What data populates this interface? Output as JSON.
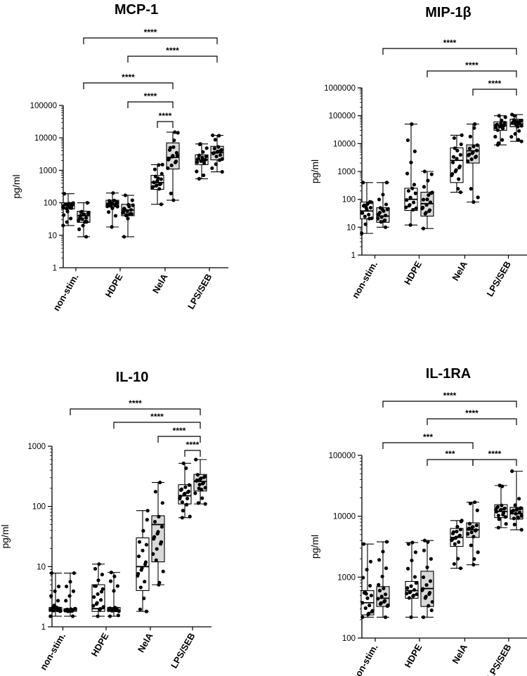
{
  "chart_data": [
    {
      "type": "box",
      "title": "MCP-1",
      "ylabel": "pg/ml",
      "yscale": "log",
      "ylim": [
        1,
        100000
      ],
      "yticks": [
        "1",
        "10",
        "100",
        "1000",
        "10000",
        "100000"
      ],
      "categories": [
        "non-stim.",
        "HDPE",
        "NelA",
        "LPS/SEB"
      ],
      "boxes": [
        {
          "category": "non-stim.",
          "fill": "#ffffff",
          "min": 20,
          "q1": 65,
          "median": 85,
          "q3": 100,
          "max": 190
        },
        {
          "category": "non-stim.",
          "fill": "#d9d9d9",
          "min": 9,
          "q1": 25,
          "median": 40,
          "q3": 55,
          "max": 100
        },
        {
          "category": "HDPE",
          "fill": "#ffffff",
          "min": 18,
          "q1": 75,
          "median": 95,
          "q3": 120,
          "max": 200
        },
        {
          "category": "HDPE",
          "fill": "#d9d9d9",
          "min": 9,
          "q1": 40,
          "median": 60,
          "q3": 90,
          "max": 170
        },
        {
          "category": "NelA",
          "fill": "#ffffff",
          "min": 90,
          "q1": 260,
          "median": 420,
          "q3": 700,
          "max": 1500
        },
        {
          "category": "NelA",
          "fill": "#d9d9d9",
          "min": 120,
          "q1": 1100,
          "median": 2500,
          "q3": 7000,
          "max": 15000
        },
        {
          "category": "LPS/SEB",
          "fill": "#ffffff",
          "min": 550,
          "q1": 1500,
          "median": 2100,
          "q3": 3000,
          "max": 6500
        },
        {
          "category": "LPS/SEB",
          "fill": "#d9d9d9",
          "min": 900,
          "q1": 2100,
          "median": 3500,
          "q3": 5500,
          "max": 12000
        }
      ],
      "comparisons": [
        {
          "label": "****",
          "from": 1,
          "to": 7,
          "tick_left": true
        },
        {
          "label": "****",
          "from": 3,
          "to": 7,
          "tick_left": true
        },
        {
          "label": "****",
          "from": 1,
          "to": 5,
          "tick_left": true
        },
        {
          "label": "****",
          "from": 3,
          "to": 5,
          "tick_left": true
        },
        {
          "label": "****",
          "from": 4,
          "to": 5,
          "tick_left": true
        }
      ]
    },
    {
      "type": "box",
      "title": "MIP-1β",
      "ylabel": "pg/ml",
      "yscale": "log",
      "ylim": [
        1,
        1000000
      ],
      "yticks": [
        "1",
        "10",
        "100",
        "1000",
        "10000",
        "100000",
        "1000000"
      ],
      "categories": [
        "non-stim.",
        "HDPE",
        "NelA",
        "LPS/SEB"
      ],
      "boxes": [
        {
          "category": "non-stim.",
          "fill": "#ffffff",
          "min": 6,
          "q1": 20,
          "median": 38,
          "q3": 80,
          "max": 400
        },
        {
          "category": "non-stim.",
          "fill": "#d9d9d9",
          "min": 10,
          "q1": 15,
          "median": 25,
          "q3": 50,
          "max": 400
        },
        {
          "category": "HDPE",
          "fill": "#ffffff",
          "min": 12,
          "q1": 40,
          "median": 100,
          "q3": 250,
          "max": 50000
        },
        {
          "category": "HDPE",
          "fill": "#d9d9d9",
          "min": 9,
          "q1": 25,
          "median": 70,
          "q3": 180,
          "max": 1000
        },
        {
          "category": "NelA",
          "fill": "#ffffff",
          "min": 180,
          "q1": 400,
          "median": 2500,
          "q3": 7000,
          "max": 20000
        },
        {
          "category": "NelA",
          "fill": "#d9d9d9",
          "min": 80,
          "q1": 2000,
          "median": 5500,
          "q3": 9000,
          "max": 50000
        },
        {
          "category": "LPS/SEB",
          "fill": "#ffffff",
          "min": 9000,
          "q1": 30000,
          "median": 45000,
          "q3": 60000,
          "max": 100000
        },
        {
          "category": "LPS/SEB",
          "fill": "#d9d9d9",
          "min": 12000,
          "q1": 40000,
          "median": 50000,
          "q3": 75000,
          "max": 110000
        }
      ],
      "comparisons": [
        {
          "label": "****",
          "from": 1,
          "to": 7,
          "tick_left": true
        },
        {
          "label": "****",
          "from": 3,
          "to": 7,
          "tick_left": true
        },
        {
          "label": "****",
          "from": 5,
          "to": 7,
          "tick_left": true
        }
      ]
    },
    {
      "type": "box",
      "title": "IL-10",
      "ylabel": "pg/ml",
      "yscale": "log",
      "ylim": [
        1,
        1000
      ],
      "yticks": [
        "1",
        "10",
        "100",
        "1000"
      ],
      "categories": [
        "non-stim.",
        "HDPE",
        "NelA",
        "LPS/SEB"
      ],
      "boxes": [
        {
          "category": "non-stim.",
          "fill": "#ffffff",
          "min": 1.5,
          "q1": 1.8,
          "median": 1.95,
          "q3": 2.1,
          "max": 7.8
        },
        {
          "category": "non-stim.",
          "fill": "#d9d9d9",
          "min": 1.5,
          "q1": 1.8,
          "median": 1.9,
          "q3": 2.0,
          "max": 7.8
        },
        {
          "category": "HDPE",
          "fill": "#ffffff",
          "min": 1.5,
          "q1": 1.8,
          "median": 2.0,
          "q3": 5.0,
          "max": 11
        },
        {
          "category": "HDPE",
          "fill": "#d9d9d9",
          "min": 1.5,
          "q1": 1.8,
          "median": 1.9,
          "q3": 2.1,
          "max": 8
        },
        {
          "category": "NelA",
          "fill": "#ffffff",
          "min": 1.8,
          "q1": 4,
          "median": 10,
          "q3": 30,
          "max": 85
        },
        {
          "category": "NelA",
          "fill": "#d9d9d9",
          "min": 5,
          "q1": 12,
          "median": 50,
          "q3": 70,
          "max": 250
        },
        {
          "category": "LPS/SEB",
          "fill": "#ffffff",
          "min": 65,
          "q1": 110,
          "median": 150,
          "q3": 230,
          "max": 520
        },
        {
          "category": "LPS/SEB",
          "fill": "#d9d9d9",
          "min": 110,
          "q1": 180,
          "median": 260,
          "q3": 340,
          "max": 600
        }
      ],
      "comparisons": [
        {
          "label": "****",
          "from": 1,
          "to": 7,
          "tick_left": true
        },
        {
          "label": "****",
          "from": 3,
          "to": 7,
          "tick_left": true
        },
        {
          "label": "****",
          "from": 5,
          "to": 7,
          "tick_left": true
        },
        {
          "label": "****",
          "from": 6,
          "to": 7,
          "tick_left": true
        }
      ]
    },
    {
      "type": "box",
      "title": "IL-1RA",
      "ylabel": "pg/ml",
      "yscale": "log",
      "ylim": [
        100,
        100000
      ],
      "yticks": [
        "100",
        "1000",
        "10000",
        "100000"
      ],
      "categories": [
        "non-stim.",
        "HDPE",
        "NelA",
        "LPS/SEB"
      ],
      "boxes": [
        {
          "category": "non-stim.",
          "fill": "#ffffff",
          "min": 220,
          "q1": 240,
          "median": 380,
          "q3": 600,
          "max": 3500
        },
        {
          "category": "non-stim.",
          "fill": "#d9d9d9",
          "min": 220,
          "q1": 330,
          "median": 450,
          "q3": 700,
          "max": 3800
        },
        {
          "category": "HDPE",
          "fill": "#ffffff",
          "min": 220,
          "q1": 450,
          "median": 600,
          "q3": 850,
          "max": 3700
        },
        {
          "category": "HDPE",
          "fill": "#d9d9d9",
          "min": 220,
          "q1": 330,
          "median": 650,
          "q3": 1250,
          "max": 4000
        },
        {
          "category": "NelA",
          "fill": "#ffffff",
          "min": 1400,
          "q1": 3200,
          "median": 4500,
          "q3": 6300,
          "max": 8500
        },
        {
          "category": "NelA",
          "fill": "#d9d9d9",
          "min": 1600,
          "q1": 4500,
          "median": 6000,
          "q3": 7800,
          "max": 17000
        },
        {
          "category": "LPS/SEB",
          "fill": "#ffffff",
          "min": 6500,
          "q1": 9500,
          "median": 12000,
          "q3": 15500,
          "max": 32000
        },
        {
          "category": "LPS/SEB",
          "fill": "#d9d9d9",
          "min": 6000,
          "q1": 9000,
          "median": 11000,
          "q3": 14000,
          "max": 55000
        }
      ],
      "comparisons": [
        {
          "label": "****",
          "from": 1,
          "to": 7,
          "tick_left": true
        },
        {
          "label": "****",
          "from": 3,
          "to": 7,
          "tick_left": true
        },
        {
          "label": "***",
          "from": 1,
          "to": 5,
          "tick_left": true
        },
        {
          "label": "***",
          "from": 3,
          "to": 5,
          "tick_left": true
        },
        {
          "label": "****",
          "from": 5,
          "to": 7,
          "tick_left": true
        }
      ]
    }
  ]
}
